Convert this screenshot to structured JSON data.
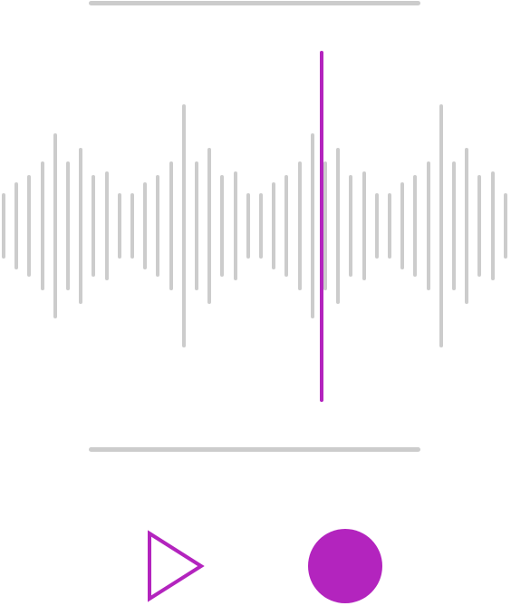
{
  "colors": {
    "accent": "#b324be",
    "wave": "#cccccc",
    "divider": "#cccccc",
    "background": "#ffffff"
  },
  "waveform": {
    "amplitudes": [
      0.19,
      0.25,
      0.29,
      0.37,
      0.53,
      0.37,
      0.45,
      0.29,
      0.31,
      0.19,
      0.19,
      0.25,
      0.29,
      0.37,
      0.7,
      0.37,
      0.45,
      0.29,
      0.31,
      0.19,
      0.19,
      0.25,
      0.29,
      0.37,
      0.53,
      0.37,
      0.45,
      0.29,
      0.31,
      0.19,
      0.19,
      0.25,
      0.29,
      0.37,
      0.7,
      0.37,
      0.45,
      0.29,
      0.31,
      0.19
    ],
    "playhead_position": 0.63
  },
  "controls": {
    "play_icon": "play-triangle-outline",
    "record_icon": "record-circle-filled"
  }
}
